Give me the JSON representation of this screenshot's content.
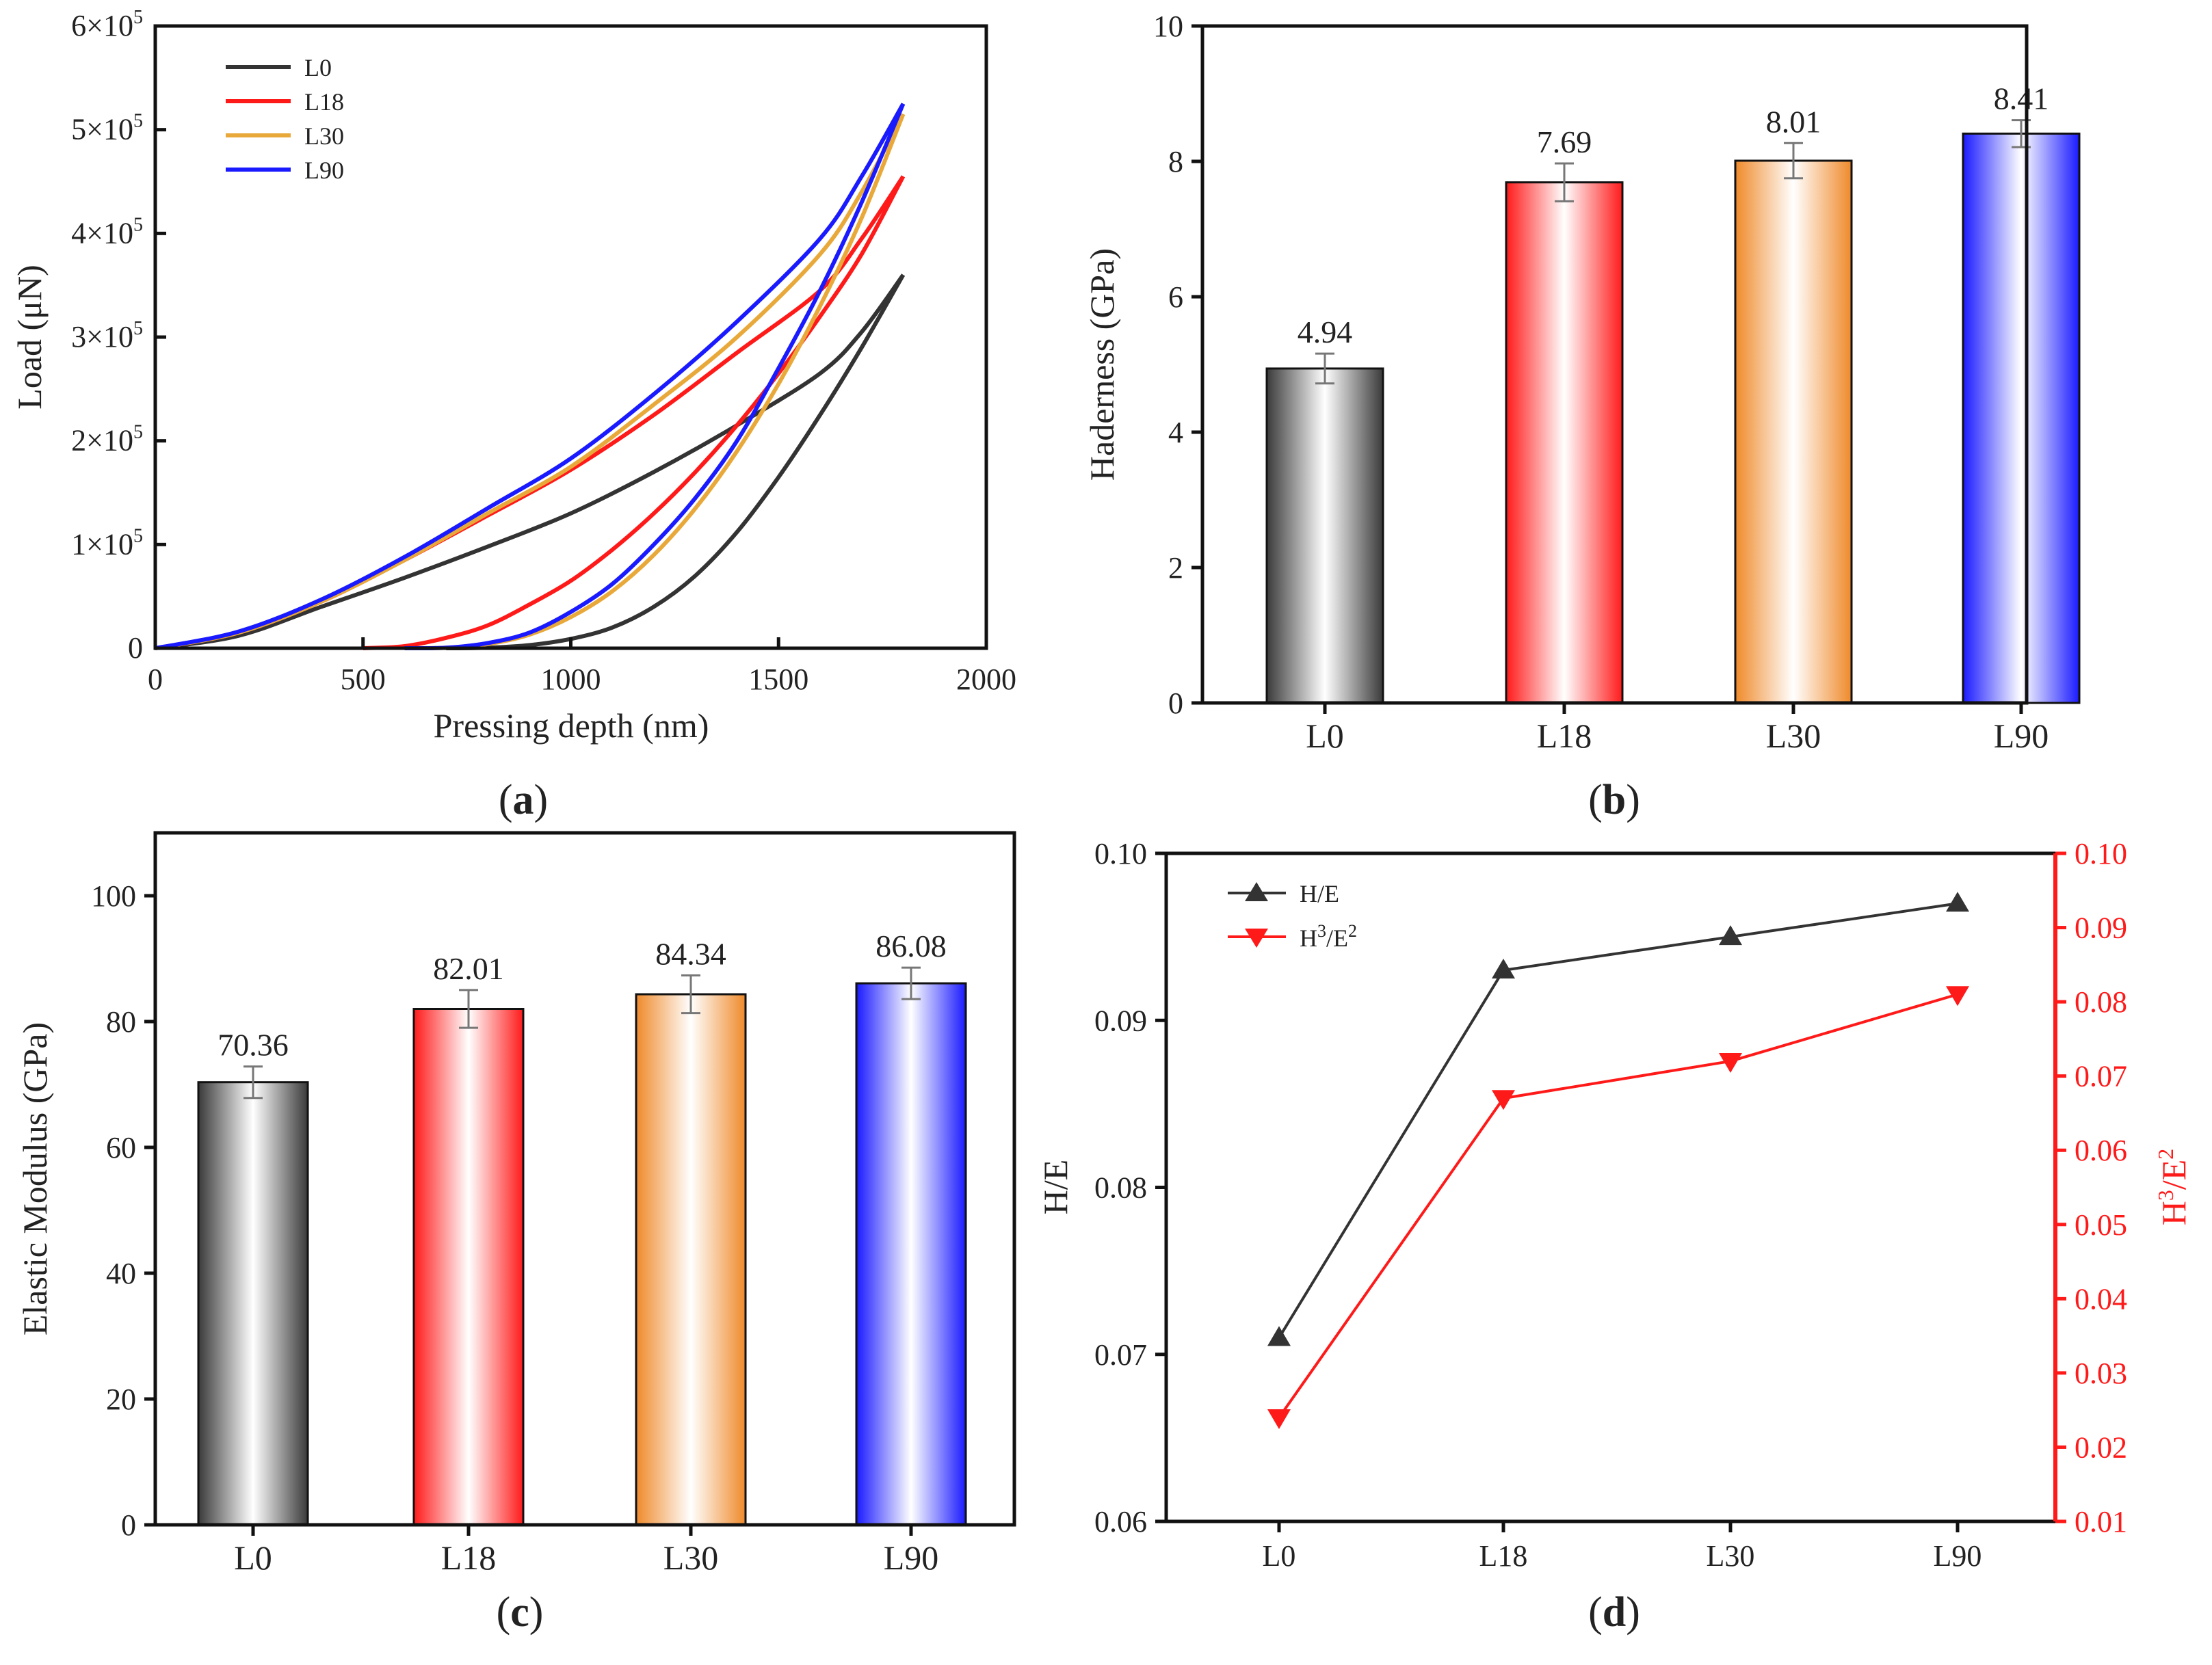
{
  "chart_data": [
    {
      "panel": "a",
      "type": "line",
      "xlabel": "Pressing depth (nm)",
      "ylabel": "Load (μN)",
      "xlim": [
        0,
        2000
      ],
      "ylim": [
        0,
        600000
      ],
      "x_ticks": [
        "0",
        "500",
        "1000",
        "1500",
        "2000"
      ],
      "y_ticks": [
        "0",
        "1×10",
        "2×10",
        "3×10",
        "4×10",
        "5×10",
        "6×10"
      ],
      "y_tick_exponent": "5",
      "series": [
        {
          "name": "L0",
          "color": "#333333",
          "loading": {
            "x": [
              0,
              200,
              400,
              600,
              800,
              1000,
              1200,
              1400,
              1600,
              1700,
              1800
            ],
            "y": [
              0,
              12000,
              40000,
              68000,
              98000,
              130000,
              170000,
              215000,
              265000,
              305000,
              360000
            ]
          },
          "unloading": {
            "x": [
              1800,
              1700,
              1600,
              1500,
              1400,
              1300,
              1200,
              1100,
              1000,
              900,
              800,
              700
            ],
            "y": [
              360000,
              290000,
              225000,
              165000,
              112000,
              70000,
              40000,
              20000,
              9000,
              3000,
              500,
              0
            ]
          }
        },
        {
          "name": "L18",
          "color": "#ff1a1a",
          "loading": {
            "x": [
              0,
              200,
              400,
              600,
              800,
              1000,
              1200,
              1400,
              1600,
              1700,
              1800
            ],
            "y": [
              0,
              15000,
              45000,
              85000,
              128000,
              172000,
              225000,
              285000,
              345000,
              395000,
              455000
            ]
          },
          "unloading": {
            "x": [
              1800,
              1700,
              1600,
              1500,
              1400,
              1300,
              1200,
              1100,
              1000,
              900,
              800,
              700,
              600,
              500
            ],
            "y": [
              455000,
              380000,
              320000,
              265000,
              215000,
              170000,
              130000,
              95000,
              65000,
              42000,
              22000,
              10000,
              2000,
              0
            ]
          }
        },
        {
          "name": "L30",
          "color": "#e8a93a",
          "loading": {
            "x": [
              0,
              200,
              400,
              600,
              800,
              1000,
              1200,
              1400,
              1600,
              1700,
              1800
            ],
            "y": [
              0,
              15000,
              45000,
              85000,
              130000,
              175000,
              235000,
              300000,
              380000,
              440000,
              515000
            ]
          },
          "unloading": {
            "x": [
              1800,
              1700,
              1600,
              1500,
              1400,
              1300,
              1200,
              1100,
              1000,
              900,
              800,
              700,
              600
            ],
            "y": [
              515000,
              415000,
              330000,
              255000,
              190000,
              135000,
              90000,
              55000,
              30000,
              13000,
              4000,
              500,
              0
            ]
          }
        },
        {
          "name": "L90",
          "color": "#1a1aff",
          "loading": {
            "x": [
              0,
              200,
              400,
              600,
              800,
              1000,
              1200,
              1400,
              1600,
              1700,
              1800
            ],
            "y": [
              0,
              16000,
              47000,
              88000,
              135000,
              183000,
              245000,
              315000,
              395000,
              455000,
              525000
            ]
          },
          "unloading": {
            "x": [
              1800,
              1700,
              1600,
              1500,
              1400,
              1300,
              1200,
              1100,
              1000,
              900,
              800,
              700,
              600
            ],
            "y": [
              525000,
              430000,
              345000,
              270000,
              200000,
              145000,
              100000,
              62000,
              35000,
              15000,
              5000,
              500,
              0
            ]
          }
        }
      ]
    },
    {
      "panel": "b",
      "type": "bar",
      "ylabel": "Haderness (GPa)",
      "categories": [
        "L0",
        "L18",
        "L30",
        "L90"
      ],
      "values": [
        4.94,
        7.69,
        8.01,
        8.41
      ],
      "value_labels": [
        "4.94",
        "7.69",
        "8.01",
        "8.41"
      ],
      "errors": [
        0.22,
        0.28,
        0.26,
        0.2
      ],
      "colors": [
        "#3a3a3a",
        "#ff1a1a",
        "#ef8a2a",
        "#1a1aff"
      ],
      "ylim": [
        0,
        10
      ],
      "y_ticks": [
        "0",
        "2",
        "4",
        "6",
        "8",
        "10"
      ]
    },
    {
      "panel": "c",
      "type": "bar",
      "ylabel": "Elastic Modulus (GPa)",
      "categories": [
        "L0",
        "L18",
        "L30",
        "L90"
      ],
      "values": [
        70.36,
        82.01,
        84.34,
        86.08
      ],
      "value_labels": [
        "70.36",
        "82.01",
        "84.34",
        "86.08"
      ],
      "errors": [
        2.5,
        3.0,
        3.0,
        2.5
      ],
      "colors": [
        "#3a3a3a",
        "#ff1a1a",
        "#ef8a2a",
        "#1a1aff"
      ],
      "ylim": [
        0,
        110
      ],
      "y_ticks": [
        "0",
        "20",
        "40",
        "60",
        "80",
        "100"
      ]
    },
    {
      "panel": "d",
      "type": "line",
      "ylabel": "H/E",
      "ylabel_right_main": "H",
      "ylabel_right_sup1": "3",
      "ylabel_right_mid": "/E",
      "ylabel_right_sup2": "2",
      "categories": [
        "L0",
        "L18",
        "L30",
        "L90"
      ],
      "ylim": [
        0.06,
        0.1
      ],
      "ylim_right": [
        0.01,
        0.1
      ],
      "y_ticks": [
        "0.06",
        "0.07",
        "0.08",
        "0.09",
        "0.10"
      ],
      "y_ticks_right": [
        "0.01",
        "0.02",
        "0.03",
        "0.04",
        "0.05",
        "0.06",
        "0.07",
        "0.08",
        "0.09",
        "0.10"
      ],
      "series": [
        {
          "name": "H/E",
          "color": "#333333",
          "marker": "triangle-up",
          "axis": "left",
          "values": [
            0.071,
            0.093,
            0.095,
            0.097
          ]
        },
        {
          "name_main": "H",
          "name_sup1": "3",
          "name_mid": "/E",
          "name_sup2": "2",
          "color": "#ff1a1a",
          "marker": "triangle-down",
          "axis": "right",
          "values": [
            0.024,
            0.067,
            0.072,
            0.081
          ]
        }
      ]
    }
  ],
  "panel_labels": [
    "a",
    "b",
    "c",
    "d"
  ]
}
